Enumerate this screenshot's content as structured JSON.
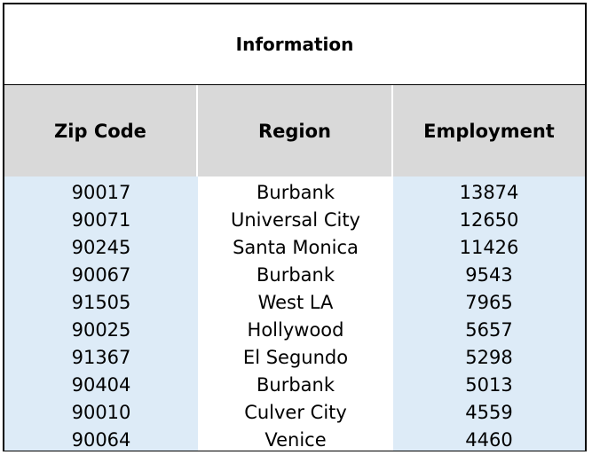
{
  "table": {
    "title": "Information",
    "headers": [
      "Zip Code",
      "Region",
      "Employment"
    ],
    "rows": [
      {
        "zip": "90017",
        "region": "Burbank",
        "employment": "13874"
      },
      {
        "zip": "90071",
        "region": "Universal City",
        "employment": "12650"
      },
      {
        "zip": "90245",
        "region": "Santa Monica",
        "employment": "11426"
      },
      {
        "zip": "90067",
        "region": "Burbank",
        "employment": "9543"
      },
      {
        "zip": "91505",
        "region": "West LA",
        "employment": "7965"
      },
      {
        "zip": "90025",
        "region": "Hollywood",
        "employment": "5657"
      },
      {
        "zip": "91367",
        "region": "El Segundo",
        "employment": "5298"
      },
      {
        "zip": "90404",
        "region": "Burbank",
        "employment": "5013"
      },
      {
        "zip": "90010",
        "region": "Culver City",
        "employment": "4559"
      },
      {
        "zip": "90064",
        "region": "Venice",
        "employment": "4460"
      }
    ]
  },
  "colors": {
    "header_bg": "#d9d9d9",
    "shaded_column_bg": "#ddebf7",
    "border": "#000000"
  }
}
